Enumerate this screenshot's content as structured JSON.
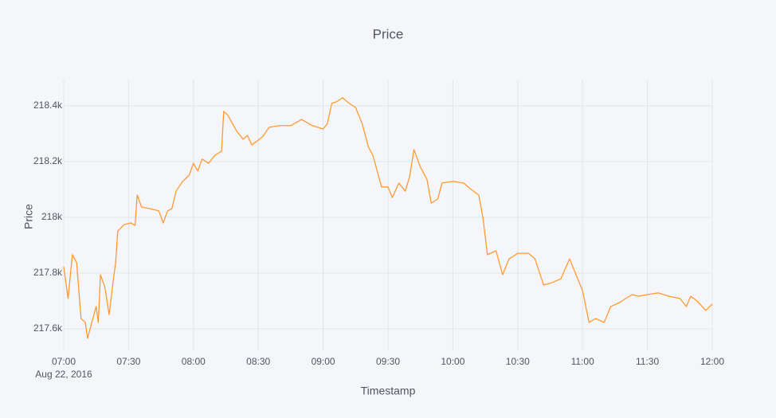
{
  "chart_data": {
    "type": "line",
    "title": "Price",
    "xlabel": "Timestamp",
    "ylabel": "Price",
    "grid": true,
    "x": [
      "2016-08-22 07:00",
      "2016-08-22 07:02",
      "2016-08-22 07:04",
      "2016-08-22 07:06",
      "2016-08-22 07:08",
      "2016-08-22 07:10",
      "2016-08-22 07:11",
      "2016-08-22 07:13",
      "2016-08-22 07:15",
      "2016-08-22 07:16",
      "2016-08-22 07:17",
      "2016-08-22 07:19",
      "2016-08-22 07:21",
      "2016-08-22 07:23",
      "2016-08-22 07:24",
      "2016-08-22 07:25",
      "2016-08-22 07:28",
      "2016-08-22 07:31",
      "2016-08-22 07:33",
      "2016-08-22 07:34",
      "2016-08-22 07:36",
      "2016-08-22 07:40",
      "2016-08-22 07:44",
      "2016-08-22 07:46",
      "2016-08-22 07:48",
      "2016-08-22 07:50",
      "2016-08-22 07:52",
      "2016-08-22 07:55",
      "2016-08-22 07:58",
      "2016-08-22 08:00",
      "2016-08-22 08:02",
      "2016-08-22 08:04",
      "2016-08-22 08:07",
      "2016-08-22 08:10",
      "2016-08-22 08:13",
      "2016-08-22 08:14",
      "2016-08-22 08:16",
      "2016-08-22 08:18",
      "2016-08-22 08:20",
      "2016-08-22 08:23",
      "2016-08-22 08:25",
      "2016-08-22 08:27",
      "2016-08-22 08:29",
      "2016-08-22 08:32",
      "2016-08-22 08:35",
      "2016-08-22 08:40",
      "2016-08-22 08:45",
      "2016-08-22 08:50",
      "2016-08-22 08:55",
      "2016-08-22 09:00",
      "2016-08-22 09:02",
      "2016-08-22 09:04",
      "2016-08-22 09:06",
      "2016-08-22 09:09",
      "2016-08-22 09:12",
      "2016-08-22 09:15",
      "2016-08-22 09:18",
      "2016-08-22 09:21",
      "2016-08-22 09:23",
      "2016-08-22 09:27",
      "2016-08-22 09:30",
      "2016-08-22 09:32",
      "2016-08-22 09:35",
      "2016-08-22 09:38",
      "2016-08-22 09:40",
      "2016-08-22 09:42",
      "2016-08-22 09:45",
      "2016-08-22 09:48",
      "2016-08-22 09:50",
      "2016-08-22 09:53",
      "2016-08-22 09:55",
      "2016-08-22 10:00",
      "2016-08-22 10:05",
      "2016-08-22 10:08",
      "2016-08-22 10:12",
      "2016-08-22 10:14",
      "2016-08-22 10:16",
      "2016-08-22 10:20",
      "2016-08-22 10:23",
      "2016-08-22 10:26",
      "2016-08-22 10:30",
      "2016-08-22 10:35",
      "2016-08-22 10:38",
      "2016-08-22 10:42",
      "2016-08-22 10:46",
      "2016-08-22 10:50",
      "2016-08-22 10:54",
      "2016-08-22 10:57",
      "2016-08-22 11:00",
      "2016-08-22 11:03",
      "2016-08-22 11:06",
      "2016-08-22 11:10",
      "2016-08-22 11:13",
      "2016-08-22 11:17",
      "2016-08-22 11:20",
      "2016-08-22 11:23",
      "2016-08-22 11:26",
      "2016-08-22 11:30",
      "2016-08-22 11:35",
      "2016-08-22 11:40",
      "2016-08-22 11:45",
      "2016-08-22 11:48",
      "2016-08-22 11:50",
      "2016-08-22 11:53",
      "2016-08-22 11:57",
      "2016-08-22 12:00"
    ],
    "series": [
      {
        "name": "Price",
        "color": "#ff9933",
        "values": [
          217823,
          217709,
          217866,
          217837,
          217637,
          217623,
          217566,
          217623,
          217680,
          217623,
          217794,
          217751,
          217651,
          217780,
          217837,
          217951,
          217974,
          217980,
          217971,
          218080,
          218037,
          218031,
          218023,
          217980,
          218023,
          218031,
          218094,
          218129,
          218151,
          218194,
          218166,
          218209,
          218194,
          218223,
          218237,
          218380,
          218366,
          218337,
          218309,
          218280,
          218294,
          218260,
          218271,
          218289,
          218323,
          218329,
          218329,
          218351,
          218329,
          218317,
          218337,
          218409,
          218414,
          218429,
          218409,
          218394,
          218337,
          218251,
          218223,
          218109,
          218109,
          218071,
          218123,
          218094,
          218146,
          218243,
          218180,
          218137,
          218051,
          218066,
          218123,
          218129,
          218123,
          218103,
          218080,
          217994,
          217866,
          217880,
          217794,
          217851,
          217871,
          217871,
          217851,
          217757,
          217766,
          217780,
          217851,
          217794,
          217737,
          217623,
          217637,
          217623,
          217680,
          217694,
          217709,
          217723,
          217717,
          217723,
          217729,
          217717,
          217709,
          217680,
          217717,
          217700,
          217666,
          217689
        ]
      }
    ],
    "xlim": [
      "2016-08-22 07:00",
      "2016-08-22 12:00"
    ],
    "xticks": [
      {
        "value": "2016-08-22 07:00",
        "label": "07:00"
      },
      {
        "value": "2016-08-22 07:30",
        "label": "07:30"
      },
      {
        "value": "2016-08-22 08:00",
        "label": "08:00"
      },
      {
        "value": "2016-08-22 08:30",
        "label": "08:30"
      },
      {
        "value": "2016-08-22 09:00",
        "label": "09:00"
      },
      {
        "value": "2016-08-22 09:30",
        "label": "09:30"
      },
      {
        "value": "2016-08-22 10:00",
        "label": "10:00"
      },
      {
        "value": "2016-08-22 10:30",
        "label": "10:30"
      },
      {
        "value": "2016-08-22 11:00",
        "label": "11:00"
      },
      {
        "value": "2016-08-22 11:30",
        "label": "11:30"
      },
      {
        "value": "2016-08-22 12:00",
        "label": "12:00"
      }
    ],
    "xtick_date_label": "Aug 22, 2016",
    "ylim": [
      217523,
      218494
    ],
    "yticks": [
      {
        "value": 217600,
        "label": "217.6k"
      },
      {
        "value": 217800,
        "label": "217.8k"
      },
      {
        "value": 218000,
        "label": "218k"
      },
      {
        "value": 218200,
        "label": "218.2k"
      },
      {
        "value": 218400,
        "label": "218.4k"
      }
    ]
  }
}
